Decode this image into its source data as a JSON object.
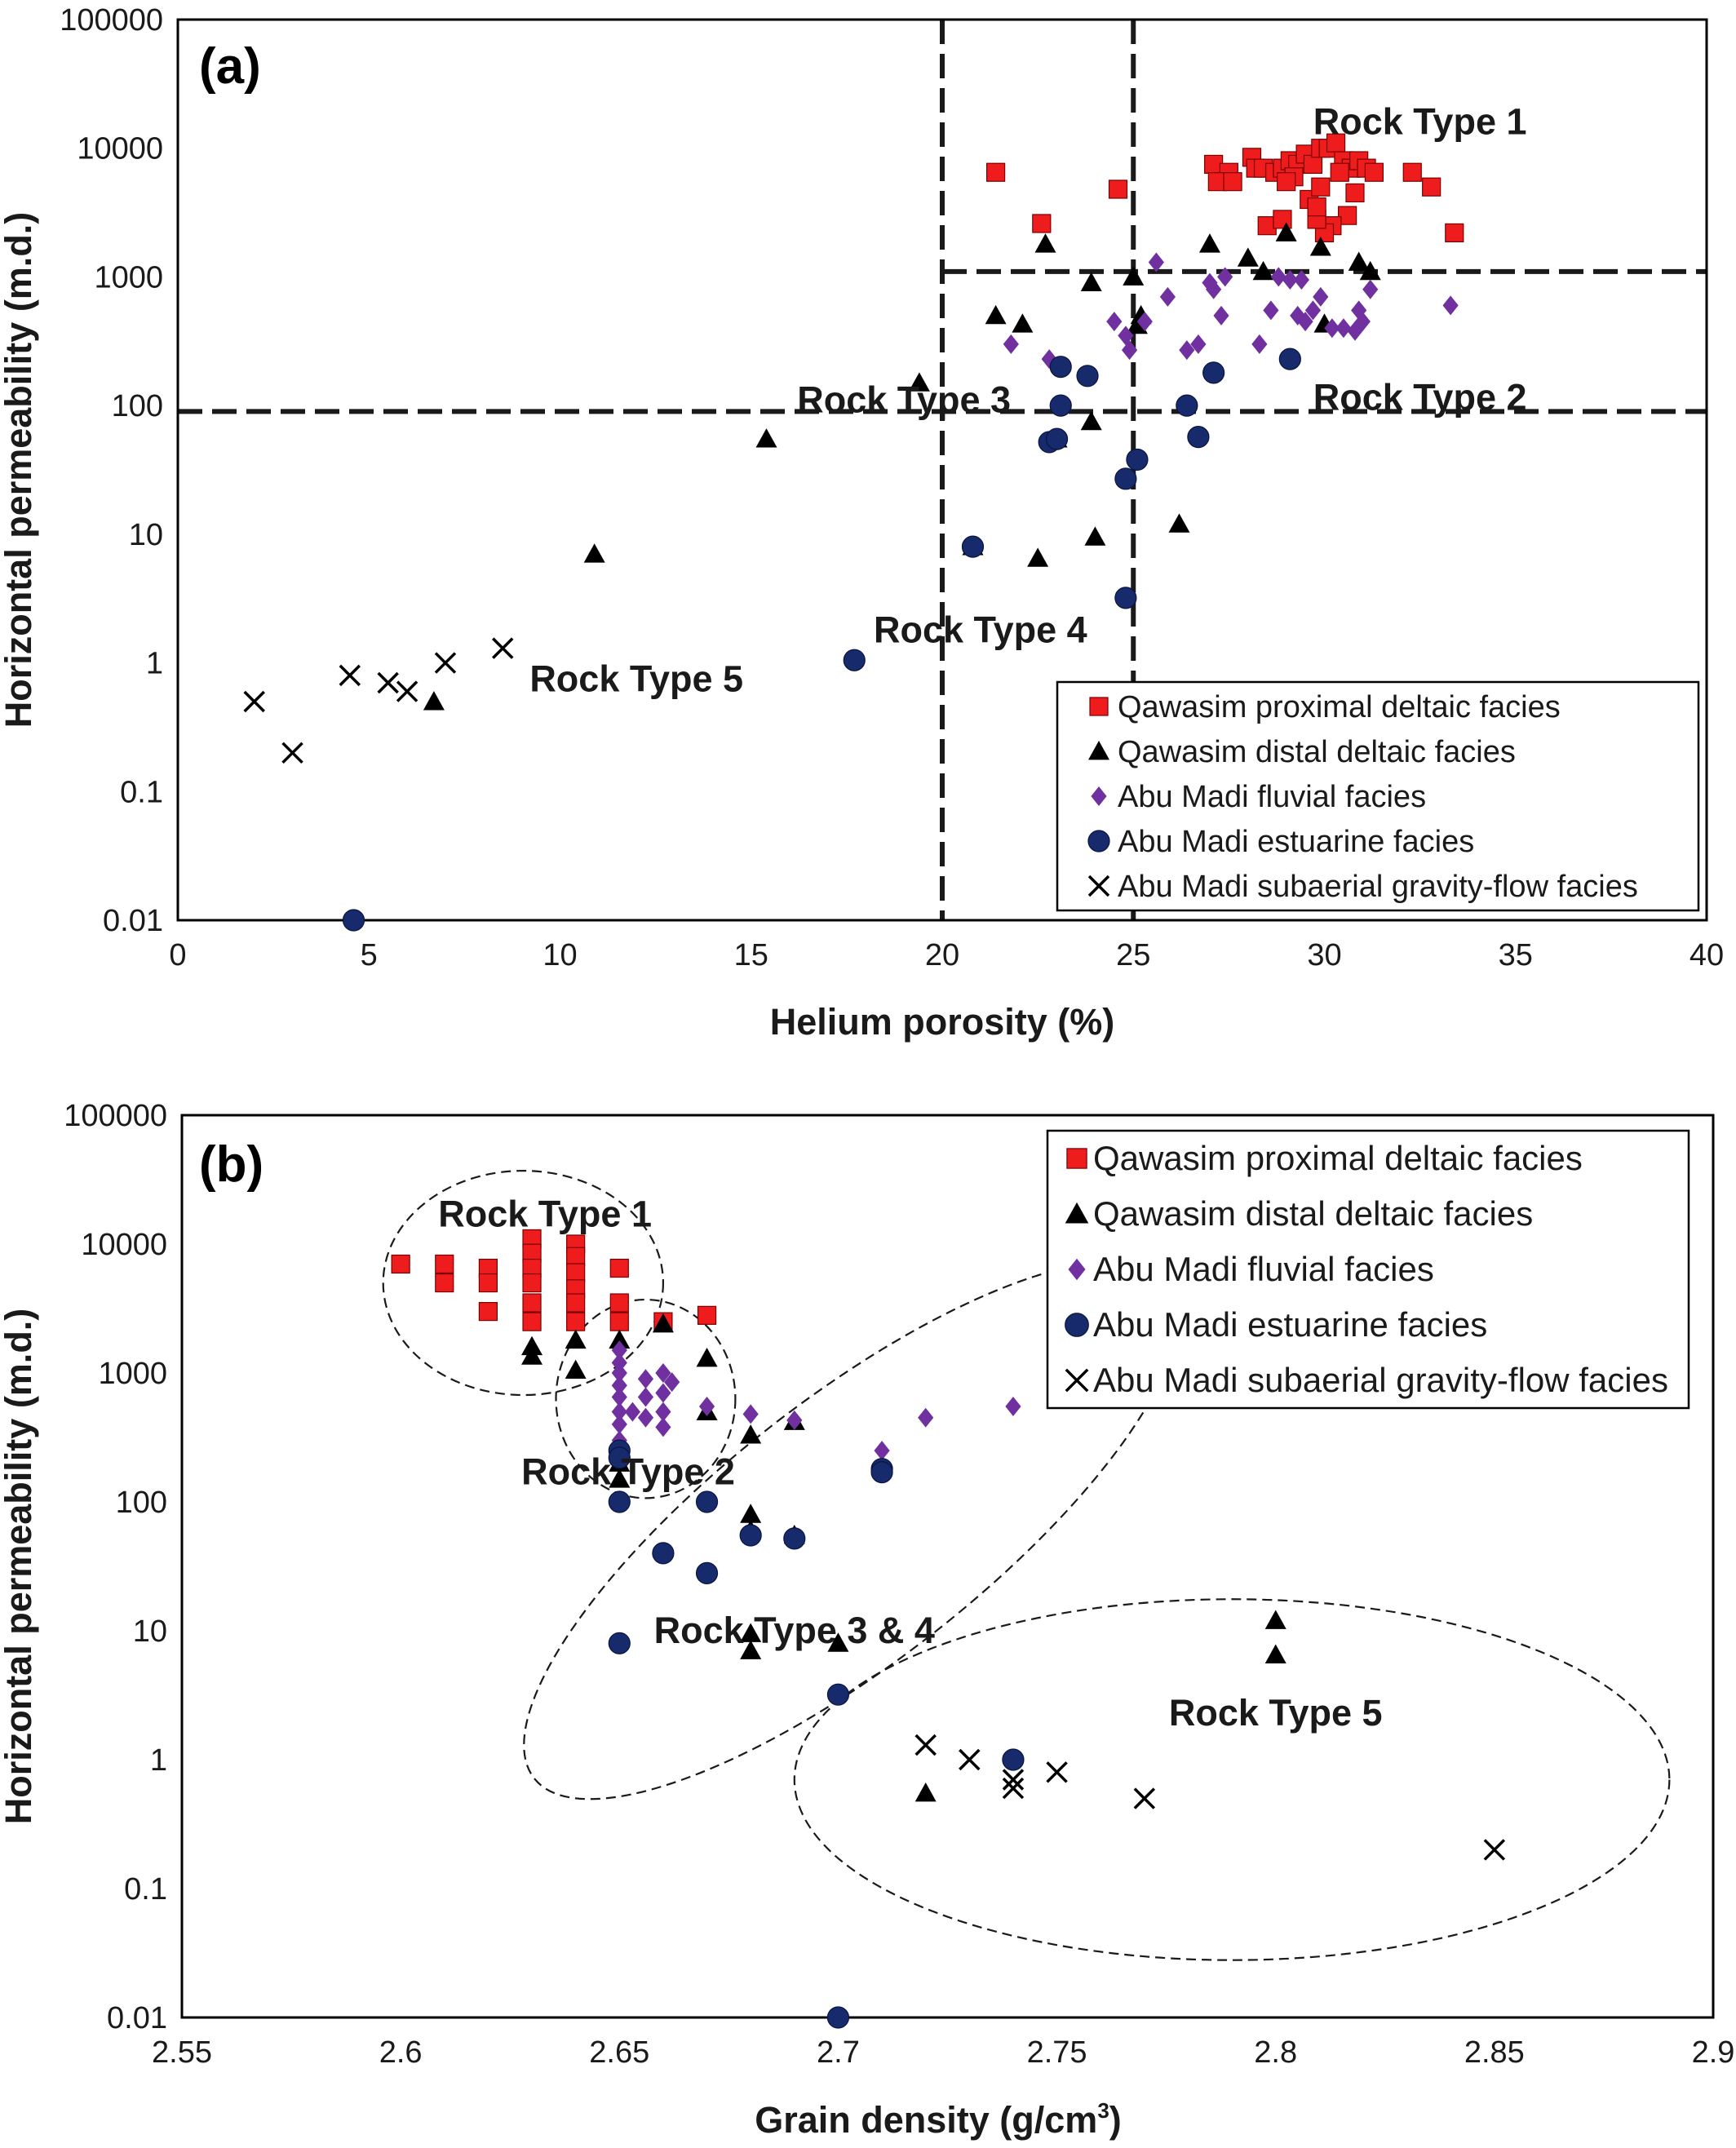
{
  "colors": {
    "Qawasim proximal deltaic facies": "#ee1c1c",
    "Qawasim distal deltaic facies": "#000000",
    "Abu Madi fluvial facies": "#7030a0",
    "Abu Madi estuarine facies": "#172a6b",
    "Abu Madi subaerial gravity-flow facies": "#000000"
  },
  "chart_data": [
    {
      "panel_label": "(a)",
      "type": "scatter",
      "xlabel": "Helium porosity (%)",
      "ylabel": "Horizontal permeability (m.d.)",
      "xlim": [
        0,
        40
      ],
      "ylim": [
        0.01,
        100000
      ],
      "yscale": "log",
      "xticks": [
        "0",
        "5",
        "10",
        "15",
        "20",
        "25",
        "30",
        "35",
        "40"
      ],
      "yticks": [
        "0.01",
        "0.1",
        "1",
        "10",
        "100",
        "1000",
        "10000",
        "100000"
      ],
      "grid": false,
      "legend_position": "bottom-right",
      "cutoff_lines": {
        "x": [
          20,
          25
        ],
        "y": [
          90,
          1100
        ]
      },
      "annotations": [
        {
          "text": "Rock Type 1",
          "x": 32.5,
          "y": 16000
        },
        {
          "text": "Rock Type 2",
          "x": 32.5,
          "y": 115
        },
        {
          "text": "Rock Type 3",
          "x": 19.0,
          "y": 110
        },
        {
          "text": "Rock Type 4",
          "x": 21.0,
          "y": 1.8
        },
        {
          "text": "Rock Type 5",
          "x": 12.0,
          "y": 0.75
        }
      ],
      "series": [
        {
          "name": "Qawasim proximal deltaic facies",
          "marker": "square",
          "points": [
            [
              21.4,
              6500
            ],
            [
              22.6,
              2600
            ],
            [
              24.6,
              4800
            ],
            [
              27.1,
              7500
            ],
            [
              27.5,
              6500
            ],
            [
              27.2,
              5500
            ],
            [
              27.6,
              5500
            ],
            [
              28.1,
              8500
            ],
            [
              28.2,
              7000
            ],
            [
              28.4,
              7000
            ],
            [
              28.7,
              6500
            ],
            [
              28.9,
              7000
            ],
            [
              29.1,
              8000
            ],
            [
              29.3,
              7500
            ],
            [
              29.5,
              9000
            ],
            [
              29.7,
              7500
            ],
            [
              29.9,
              10000
            ],
            [
              30.1,
              10000
            ],
            [
              30.3,
              11000
            ],
            [
              30.5,
              8000
            ],
            [
              30.7,
              7000
            ],
            [
              30.9,
              8000
            ],
            [
              30.8,
              4500
            ],
            [
              30.6,
              3000
            ],
            [
              30.2,
              2500
            ],
            [
              30.0,
              2200
            ],
            [
              29.8,
              2800
            ],
            [
              29.6,
              4000
            ],
            [
              29.2,
              6000
            ],
            [
              29.0,
              5500
            ],
            [
              28.5,
              2500
            ],
            [
              28.9,
              2800
            ],
            [
              29.8,
              3500
            ],
            [
              30.4,
              6500
            ],
            [
              31.1,
              7000
            ],
            [
              31.3,
              6500
            ],
            [
              32.3,
              6500
            ],
            [
              32.8,
              5000
            ],
            [
              33.4,
              2200
            ],
            [
              29.9,
              5000
            ]
          ]
        },
        {
          "name": "Qawasim distal deltaic facies",
          "marker": "triangle",
          "points": [
            [
              22.7,
              1800
            ],
            [
              21.4,
              500
            ],
            [
              22.1,
              430
            ],
            [
              23.9,
              900
            ],
            [
              25.0,
              1000
            ],
            [
              27.0,
              1800
            ],
            [
              28.0,
              1400
            ],
            [
              28.4,
              1100
            ],
            [
              29.0,
              2200
            ],
            [
              29.9,
              1700
            ],
            [
              30.9,
              1300
            ],
            [
              31.2,
              1100
            ],
            [
              30.0,
              430
            ],
            [
              25.1,
              420
            ],
            [
              19.4,
              150
            ],
            [
              15.4,
              55
            ],
            [
              10.9,
              7
            ],
            [
              6.7,
              0.5
            ],
            [
              23.9,
              75
            ],
            [
              23.0,
              55
            ],
            [
              20.8,
              8
            ],
            [
              22.5,
              6.5
            ],
            [
              24.0,
              9.5
            ],
            [
              26.2,
              12
            ],
            [
              25.2,
              500
            ]
          ]
        },
        {
          "name": "Abu Madi fluvial facies",
          "marker": "diamond",
          "points": [
            [
              21.8,
              300
            ],
            [
              22.8,
              230
            ],
            [
              24.8,
              350
            ],
            [
              24.9,
              270
            ],
            [
              25.3,
              450
            ],
            [
              25.6,
              1300
            ],
            [
              25.9,
              700
            ],
            [
              26.4,
              270
            ],
            [
              26.7,
              300
            ],
            [
              27.0,
              900
            ],
            [
              27.3,
              500
            ],
            [
              27.1,
              800
            ],
            [
              28.3,
              300
            ],
            [
              28.6,
              550
            ],
            [
              28.8,
              1000
            ],
            [
              29.1,
              950
            ],
            [
              29.3,
              500
            ],
            [
              29.5,
              450
            ],
            [
              29.7,
              550
            ],
            [
              29.9,
              700
            ],
            [
              30.2,
              400
            ],
            [
              30.5,
              400
            ],
            [
              30.8,
              380
            ],
            [
              31.0,
              450
            ],
            [
              31.2,
              800
            ],
            [
              30.9,
              550
            ],
            [
              29.4,
              950
            ],
            [
              33.3,
              600
            ],
            [
              27.4,
              1000
            ],
            [
              24.5,
              450
            ]
          ]
        },
        {
          "name": "Abu Madi estuarine facies",
          "marker": "circle",
          "points": [
            [
              23.1,
              200
            ],
            [
              23.8,
              170
            ],
            [
              23.1,
              100
            ],
            [
              22.8,
              52
            ],
            [
              23.0,
              55
            ],
            [
              26.4,
              100
            ],
            [
              26.7,
              57
            ],
            [
              27.1,
              180
            ],
            [
              29.1,
              230
            ],
            [
              25.1,
              38
            ],
            [
              24.8,
              27
            ],
            [
              24.8,
              3.2
            ],
            [
              20.8,
              8
            ],
            [
              17.7,
              1.05
            ],
            [
              4.6,
              0.01
            ]
          ]
        },
        {
          "name": "Abu Madi subaerial gravity-flow facies",
          "marker": "x",
          "points": [
            [
              2.0,
              0.5
            ],
            [
              3.0,
              0.2
            ],
            [
              4.5,
              0.8
            ],
            [
              5.5,
              0.7
            ],
            [
              6.0,
              0.6
            ],
            [
              7.0,
              1.0
            ],
            [
              8.5,
              1.3
            ]
          ]
        }
      ]
    },
    {
      "panel_label": "(b)",
      "type": "scatter",
      "xlabel": "Grain density (g/cm",
      "xlabel_superscript": "3",
      "xlabel_tail": ")",
      "ylabel": "Horizontal permeability (m.d.)",
      "xlim": [
        2.55,
        2.9
      ],
      "ylim": [
        0.01,
        100000
      ],
      "yscale": "log",
      "xticks": [
        "2.55",
        "2.6",
        "2.65",
        "2.7",
        "2.75",
        "2.8",
        "2.85",
        "2.9"
      ],
      "yticks": [
        "0.01",
        "0.1",
        "1",
        "10",
        "100",
        "1000",
        "10000",
        "100000"
      ],
      "grid": false,
      "legend_position": "top-right",
      "annotations": [
        {
          "text": "Rock Type 1",
          "x": 2.633,
          "y": 17000
        },
        {
          "text": "Rock Type 2",
          "x": 2.652,
          "y": 170
        },
        {
          "text": "Rock Type 3 & 4",
          "x": 2.69,
          "y": 10
        },
        {
          "text": "Rock Type 5",
          "x": 2.8,
          "y": 2.3
        }
      ],
      "regions": [
        {
          "label": "Rock Type 1",
          "cx": 2.628,
          "cy": 5000,
          "x_radius": 0.032,
          "decades_radius": 0.87
        },
        {
          "label": "Rock Type 2",
          "cx": 2.656,
          "cy": 630,
          "x_radius": 0.0205,
          "decades_radius": 0.77
        },
        {
          "label": "Rock Type 3 & 4",
          "cx": 2.703,
          "cy": 60,
          "x_radius": 0.092,
          "decades_radius": 1.02,
          "rotation": -38
        },
        {
          "label": "Rock Type 5",
          "cx": 2.79,
          "cy": 0.7,
          "x_radius": 0.1,
          "decades_radius": 1.4
        }
      ],
      "series": [
        {
          "name": "Qawasim proximal deltaic facies",
          "marker": "square",
          "points": [
            [
              2.6,
              7000
            ],
            [
              2.61,
              7000
            ],
            [
              2.61,
              5000
            ],
            [
              2.62,
              6500
            ],
            [
              2.62,
              5000
            ],
            [
              2.62,
              3000
            ],
            [
              2.63,
              11000
            ],
            [
              2.63,
              8500
            ],
            [
              2.63,
              6500
            ],
            [
              2.63,
              5000
            ],
            [
              2.63,
              3500
            ],
            [
              2.63,
              2500
            ],
            [
              2.64,
              10000
            ],
            [
              2.64,
              8000
            ],
            [
              2.64,
              6000
            ],
            [
              2.64,
              4500
            ],
            [
              2.64,
              3500
            ],
            [
              2.64,
              2500
            ],
            [
              2.65,
              6500
            ],
            [
              2.65,
              3500
            ],
            [
              2.65,
              2500
            ],
            [
              2.66,
              2500
            ],
            [
              2.67,
              2800
            ]
          ]
        },
        {
          "name": "Qawasim distal deltaic facies",
          "marker": "triangle",
          "points": [
            [
              2.63,
              1600
            ],
            [
              2.63,
              1350
            ],
            [
              2.64,
              1800
            ],
            [
              2.64,
              1050
            ],
            [
              2.65,
              1800
            ],
            [
              2.66,
              2400
            ],
            [
              2.67,
              1300
            ],
            [
              2.65,
              200
            ],
            [
              2.65,
              150
            ],
            [
              2.67,
              500
            ],
            [
              2.68,
              330
            ],
            [
              2.69,
              420
            ],
            [
              2.68,
              80
            ],
            [
              2.68,
              60
            ],
            [
              2.69,
              55
            ],
            [
              2.68,
              9.5
            ],
            [
              2.68,
              7
            ],
            [
              2.7,
              8
            ],
            [
              2.72,
              0.55
            ],
            [
              2.8,
              12
            ],
            [
              2.8,
              6.5
            ]
          ]
        },
        {
          "name": "Abu Madi fluvial facies",
          "marker": "diamond",
          "points": [
            [
              2.65,
              1500
            ],
            [
              2.65,
              1200
            ],
            [
              2.65,
              1000
            ],
            [
              2.65,
              800
            ],
            [
              2.65,
              650
            ],
            [
              2.65,
              500
            ],
            [
              2.65,
              400
            ],
            [
              2.65,
              300
            ],
            [
              2.656,
              900
            ],
            [
              2.656,
              650
            ],
            [
              2.656,
              450
            ],
            [
              2.66,
              1000
            ],
            [
              2.66,
              700
            ],
            [
              2.66,
              500
            ],
            [
              2.662,
              850
            ],
            [
              2.66,
              380
            ],
            [
              2.653,
              500
            ],
            [
              2.67,
              550
            ],
            [
              2.68,
              480
            ],
            [
              2.69,
              430
            ],
            [
              2.71,
              250
            ],
            [
              2.72,
              450
            ],
            [
              2.74,
              550
            ]
          ]
        },
        {
          "name": "Abu Madi estuarine facies",
          "marker": "circle",
          "points": [
            [
              2.65,
              250
            ],
            [
              2.65,
              220
            ],
            [
              2.65,
              100
            ],
            [
              2.66,
              40
            ],
            [
              2.67,
              100
            ],
            [
              2.67,
              28
            ],
            [
              2.68,
              55
            ],
            [
              2.69,
              52
            ],
            [
              2.71,
              180
            ],
            [
              2.71,
              170
            ],
            [
              2.65,
              8
            ],
            [
              2.7,
              3.2
            ],
            [
              2.74,
              1.0
            ],
            [
              2.7,
              0.01
            ]
          ]
        },
        {
          "name": "Abu Madi subaerial gravity-flow facies",
          "marker": "x",
          "points": [
            [
              2.72,
              1.3
            ],
            [
              2.73,
              1.0
            ],
            [
              2.74,
              0.7
            ],
            [
              2.74,
              0.6
            ],
            [
              2.75,
              0.8
            ],
            [
              2.77,
              0.5
            ],
            [
              2.85,
              0.2
            ]
          ]
        }
      ]
    }
  ]
}
